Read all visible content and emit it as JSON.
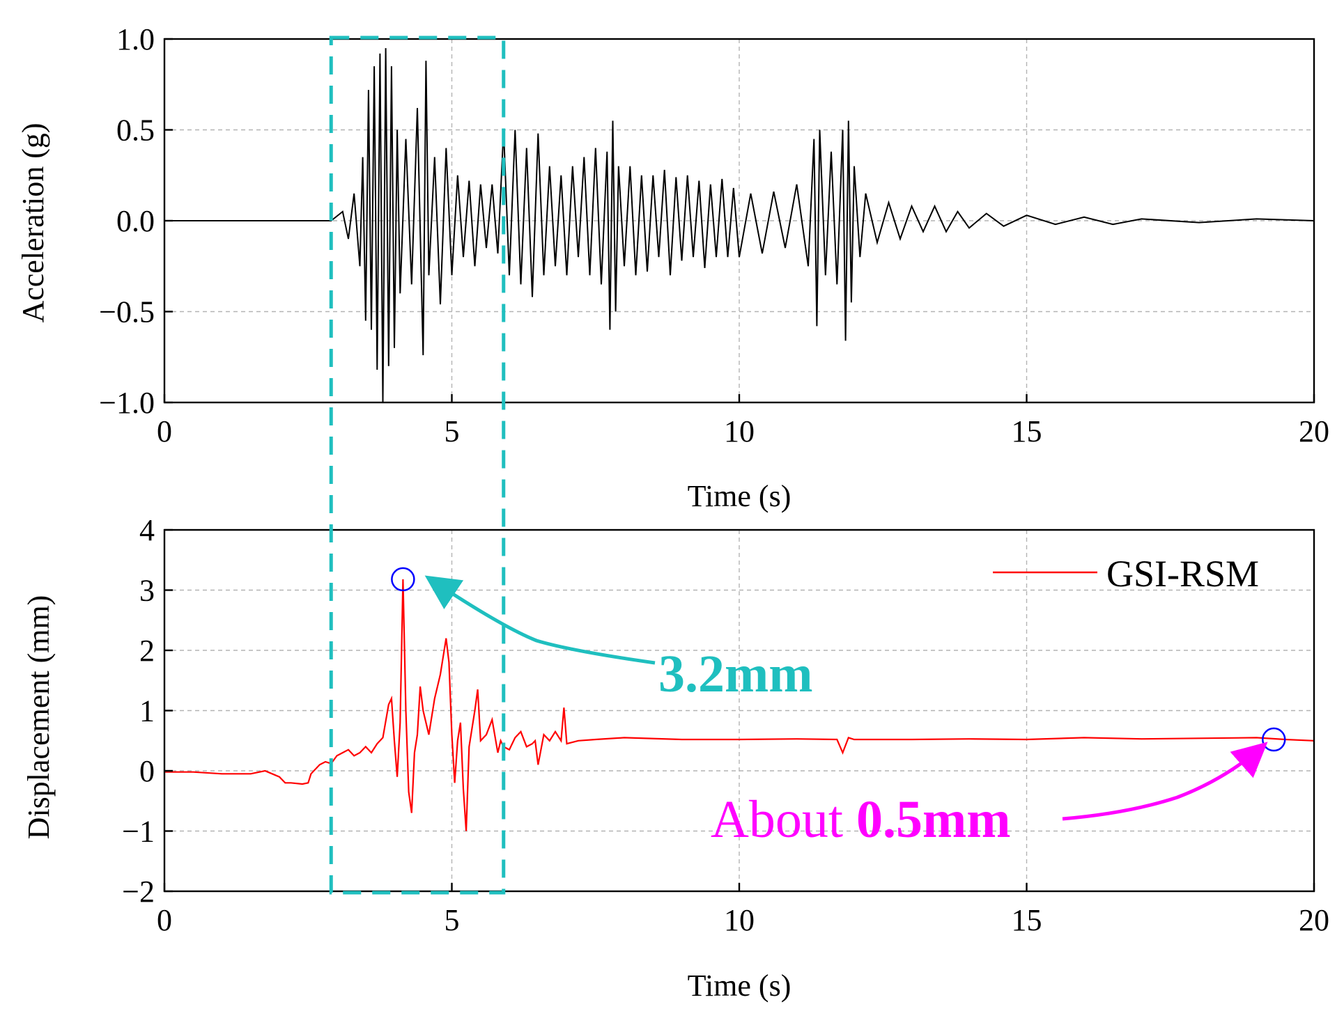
{
  "chart_data": [
    {
      "type": "line",
      "panel": "top",
      "xlabel": "Time (s)",
      "ylabel": "Acceleration (g)",
      "xlim": [
        0,
        20
      ],
      "ylim": [
        -1.0,
        1.0
      ],
      "xticks": [
        0,
        5,
        10,
        15,
        20
      ],
      "xtick_labels": [
        "0",
        "5",
        "10",
        "15",
        "20"
      ],
      "yticks": [
        -1.0,
        -0.5,
        0.0,
        0.5,
        1.0
      ],
      "ytick_labels": [
        "−1.0",
        "−0.5",
        "0.0",
        "0.5",
        "1.0"
      ],
      "grid": true,
      "series": [
        {
          "name": "Acceleration",
          "color": "#000000",
          "x": [
            0,
            1,
            2,
            2.9,
            3.1,
            3.2,
            3.3,
            3.4,
            3.45,
            3.5,
            3.55,
            3.6,
            3.65,
            3.7,
            3.75,
            3.8,
            3.85,
            3.9,
            3.95,
            4.0,
            4.05,
            4.1,
            4.2,
            4.3,
            4.4,
            4.5,
            4.55,
            4.6,
            4.7,
            4.8,
            4.9,
            5.0,
            5.1,
            5.2,
            5.3,
            5.4,
            5.5,
            5.6,
            5.7,
            5.8,
            5.9,
            6.0,
            6.1,
            6.2,
            6.3,
            6.4,
            6.5,
            6.6,
            6.7,
            6.8,
            6.9,
            7.0,
            7.1,
            7.2,
            7.3,
            7.4,
            7.5,
            7.6,
            7.7,
            7.75,
            7.8,
            7.85,
            7.9,
            8.0,
            8.1,
            8.2,
            8.3,
            8.4,
            8.5,
            8.6,
            8.7,
            8.8,
            8.9,
            9.0,
            9.1,
            9.2,
            9.3,
            9.4,
            9.5,
            9.6,
            9.7,
            9.8,
            9.9,
            10.0,
            10.2,
            10.4,
            10.6,
            10.8,
            11.0,
            11.2,
            11.3,
            11.35,
            11.4,
            11.5,
            11.6,
            11.7,
            11.8,
            11.85,
            11.9,
            11.95,
            12.0,
            12.1,
            12.2,
            12.4,
            12.6,
            12.8,
            13.0,
            13.2,
            13.4,
            13.6,
            13.8,
            14.0,
            14.3,
            14.6,
            15.0,
            15.5,
            16.0,
            16.5,
            17.0,
            18.0,
            19.0,
            20.0
          ],
          "y": [
            0.0,
            0.0,
            0.0,
            0.0,
            0.05,
            -0.1,
            0.15,
            -0.25,
            0.35,
            -0.55,
            0.72,
            -0.6,
            0.85,
            -0.82,
            0.92,
            -1.0,
            0.95,
            -0.8,
            0.85,
            -0.7,
            0.5,
            -0.4,
            0.45,
            -0.35,
            0.62,
            -0.74,
            0.88,
            -0.3,
            0.35,
            -0.46,
            0.4,
            -0.3,
            0.25,
            -0.2,
            0.22,
            -0.25,
            0.2,
            -0.15,
            0.2,
            -0.18,
            0.5,
            -0.3,
            0.5,
            -0.35,
            0.4,
            -0.42,
            0.48,
            -0.3,
            0.3,
            -0.25,
            0.25,
            -0.3,
            0.3,
            -0.2,
            0.35,
            -0.3,
            0.4,
            -0.35,
            0.38,
            -0.6,
            0.55,
            -0.5,
            0.3,
            -0.25,
            0.3,
            -0.3,
            0.25,
            -0.28,
            0.25,
            -0.2,
            0.28,
            -0.3,
            0.24,
            -0.22,
            0.25,
            -0.2,
            0.22,
            -0.26,
            0.2,
            -0.2,
            0.23,
            -0.2,
            0.18,
            -0.2,
            0.15,
            -0.18,
            0.16,
            -0.15,
            0.2,
            -0.25,
            0.45,
            -0.58,
            0.5,
            -0.3,
            0.38,
            -0.35,
            0.5,
            -0.66,
            0.55,
            -0.45,
            0.3,
            -0.2,
            0.15,
            -0.12,
            0.1,
            -0.1,
            0.08,
            -0.06,
            0.08,
            -0.06,
            0.05,
            -0.04,
            0.04,
            -0.03,
            0.03,
            -0.02,
            0.02,
            -0.02,
            0.01,
            -0.01,
            0.01,
            0.0
          ]
        }
      ]
    },
    {
      "type": "line",
      "panel": "bottom",
      "xlabel": "Time (s)",
      "ylabel": "Displacement (mm)",
      "xlim": [
        0,
        20
      ],
      "ylim": [
        -2,
        4
      ],
      "xticks": [
        0,
        5,
        10,
        15,
        20
      ],
      "xtick_labels": [
        "0",
        "5",
        "10",
        "15",
        "20"
      ],
      "yticks": [
        -2,
        -1,
        0,
        1,
        2,
        3,
        4
      ],
      "ytick_labels": [
        "−2",
        "−1",
        "0",
        "1",
        "2",
        "3",
        "4"
      ],
      "grid": true,
      "legend": {
        "position": "top-right",
        "label": "GSI-RSM"
      },
      "series": [
        {
          "name": "GSI-RSM",
          "color": "#ff0000",
          "x": [
            0,
            0.5,
            1.0,
            1.5,
            1.75,
            2.0,
            2.1,
            2.2,
            2.4,
            2.5,
            2.55,
            2.7,
            2.8,
            2.9,
            3.0,
            3.1,
            3.2,
            3.3,
            3.4,
            3.5,
            3.6,
            3.7,
            3.8,
            3.9,
            3.95,
            4.0,
            4.05,
            4.1,
            4.15,
            4.2,
            4.25,
            4.3,
            4.35,
            4.4,
            4.45,
            4.5,
            4.6,
            4.7,
            4.8,
            4.9,
            4.95,
            5.0,
            5.05,
            5.1,
            5.15,
            5.2,
            5.25,
            5.3,
            5.4,
            5.45,
            5.5,
            5.6,
            5.7,
            5.8,
            5.85,
            5.9,
            6.0,
            6.1,
            6.2,
            6.3,
            6.4,
            6.45,
            6.5,
            6.6,
            6.7,
            6.8,
            6.9,
            6.95,
            7.0,
            7.2,
            7.5,
            8.0,
            9.0,
            10.0,
            11.0,
            11.7,
            11.8,
            11.9,
            12.0,
            13.0,
            14.0,
            15.0,
            16.0,
            17.0,
            18.0,
            19.0,
            19.5,
            20.0
          ],
          "y": [
            -0.02,
            -0.02,
            -0.05,
            -0.05,
            0.0,
            -0.1,
            -0.2,
            -0.2,
            -0.22,
            -0.2,
            -0.05,
            0.1,
            0.15,
            0.12,
            0.25,
            0.3,
            0.35,
            0.25,
            0.3,
            0.4,
            0.3,
            0.45,
            0.55,
            1.1,
            1.2,
            0.5,
            -0.1,
            0.8,
            3.18,
            1.0,
            -0.35,
            -0.7,
            0.3,
            0.6,
            1.4,
            1.0,
            0.6,
            1.2,
            1.6,
            2.2,
            1.8,
            0.6,
            -0.2,
            0.5,
            0.8,
            -0.3,
            -1.0,
            0.4,
            1.0,
            1.35,
            0.5,
            0.6,
            0.85,
            0.3,
            0.5,
            0.4,
            0.35,
            0.55,
            0.65,
            0.4,
            0.45,
            0.5,
            0.1,
            0.6,
            0.5,
            0.65,
            0.5,
            1.05,
            0.45,
            0.5,
            0.52,
            0.55,
            0.52,
            0.52,
            0.53,
            0.52,
            0.3,
            0.55,
            0.52,
            0.52,
            0.53,
            0.52,
            0.55,
            0.53,
            0.54,
            0.55,
            0.52,
            0.5
          ]
        }
      ],
      "markers": [
        {
          "x": 4.15,
          "y": 3.18
        },
        {
          "x": 19.3,
          "y": 0.52
        }
      ]
    }
  ],
  "annotations": {
    "peak_label": "3.2mm",
    "residual_label_prefix": "About ",
    "residual_label_value": "0.5mm",
    "peak_color": "#1fbfbf",
    "residual_color": "#ff00ff",
    "marker_color": "#0000ff",
    "highlight_window_s": [
      2.9,
      5.9
    ]
  }
}
